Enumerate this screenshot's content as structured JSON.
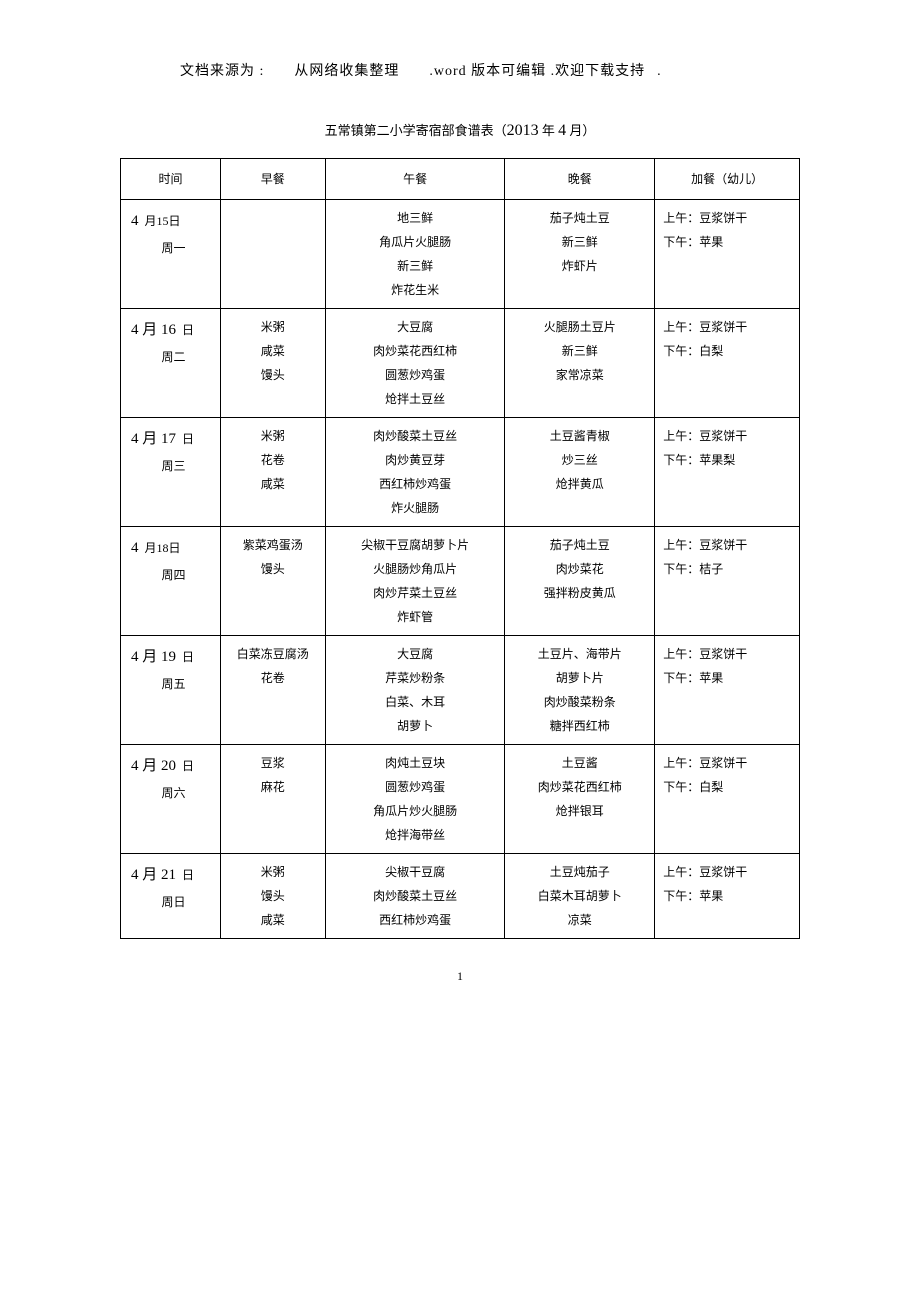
{
  "header": {
    "src": "文档来源为",
    "colon": " :",
    "part1": "从网络收集整理",
    "part2": ".word 版本可编辑 .欢迎下载支持",
    "dot": "."
  },
  "title": {
    "prefix": "五常镇第二小学寄宿部食谱表（",
    "year": "2013",
    "year_suffix": " 年 ",
    "month": "4",
    "month_suffix": " 月）"
  },
  "columns": {
    "date": "时间",
    "breakfast": "早餐",
    "lunch": "午餐",
    "dinner": "晚餐",
    "snack": "加餐（幼儿）"
  },
  "rows": [
    {
      "date_line1_a": "4",
      "date_line1_b": "月15日",
      "date_line2": "周一",
      "breakfast": [],
      "lunch": [
        "地三鲜",
        "角瓜片火腿肠",
        "新三鲜",
        "炸花生米"
      ],
      "dinner": [
        "茄子炖土豆",
        "新三鲜",
        "炸虾片"
      ],
      "snack": [
        "上午：豆浆饼干",
        "下午：苹果"
      ]
    },
    {
      "date_line1_a": "4 月 16",
      "date_line1_b": "日",
      "date_line2": "周二",
      "breakfast": [
        "米粥",
        "咸菜",
        "馒头"
      ],
      "lunch": [
        "大豆腐",
        "肉炒菜花西红柿",
        "圆葱炒鸡蛋",
        "炝拌土豆丝"
      ],
      "dinner": [
        "火腿肠土豆片",
        "新三鲜",
        "家常凉菜"
      ],
      "snack": [
        "上午：豆浆饼干",
        "下午：白梨"
      ]
    },
    {
      "date_line1_a": "4 月 17",
      "date_line1_b": "日",
      "date_line2": "周三",
      "breakfast": [
        "米粥",
        "花卷",
        "咸菜"
      ],
      "lunch": [
        "肉炒酸菜土豆丝",
        "肉炒黄豆芽",
        "西红柿炒鸡蛋",
        "炸火腿肠"
      ],
      "dinner": [
        "土豆酱青椒",
        "炒三丝",
        "炝拌黄瓜"
      ],
      "snack": [
        "上午：豆浆饼干",
        "下午：苹果梨"
      ]
    },
    {
      "date_line1_a": "4",
      "date_line1_b": "月18日",
      "date_line2": "周四",
      "breakfast": [
        "紫菜鸡蛋汤",
        "馒头"
      ],
      "lunch": [
        "尖椒干豆腐胡萝卜片",
        "火腿肠炒角瓜片",
        "肉炒芹菜土豆丝",
        "炸虾管"
      ],
      "dinner": [
        "茄子炖土豆",
        "肉炒菜花",
        "强拌粉皮黄瓜"
      ],
      "snack": [
        "上午：豆浆饼干",
        "下午：桔子"
      ]
    },
    {
      "date_line1_a": "4 月 19",
      "date_line1_b": "日",
      "date_line2": "周五",
      "breakfast": [
        "白菜冻豆腐汤",
        "花卷"
      ],
      "lunch": [
        "大豆腐",
        "芹菜炒粉条",
        "白菜、木耳",
        "胡萝卜"
      ],
      "dinner": [
        "土豆片、海带片",
        "胡萝卜片",
        "肉炒酸菜粉条",
        "糖拌西红柿"
      ],
      "snack": [
        "上午：豆浆饼干",
        "下午：苹果"
      ]
    },
    {
      "date_line1_a": "4 月 20",
      "date_line1_b": "日",
      "date_line2": "周六",
      "breakfast": [
        "豆浆",
        "麻花"
      ],
      "lunch": [
        "肉炖土豆块",
        "圆葱炒鸡蛋",
        "角瓜片炒火腿肠",
        "炝拌海带丝"
      ],
      "dinner": [
        "土豆酱",
        "肉炒菜花西红柿",
        "炝拌银耳"
      ],
      "snack": [
        "上午：豆浆饼干",
        "下午：白梨"
      ]
    },
    {
      "date_line1_a": "4 月 21",
      "date_line1_b": "日",
      "date_line2": "周日",
      "breakfast": [
        "米粥",
        "馒头",
        "咸菜"
      ],
      "lunch": [
        "尖椒干豆腐",
        "肉炒酸菜土豆丝",
        "西红柿炒鸡蛋"
      ],
      "dinner": [
        "土豆炖茄子",
        "白菜木耳胡萝卜",
        "凉菜"
      ],
      "snack": [
        "上午：豆浆饼干",
        "下午：苹果"
      ]
    }
  ],
  "page_number": "1"
}
